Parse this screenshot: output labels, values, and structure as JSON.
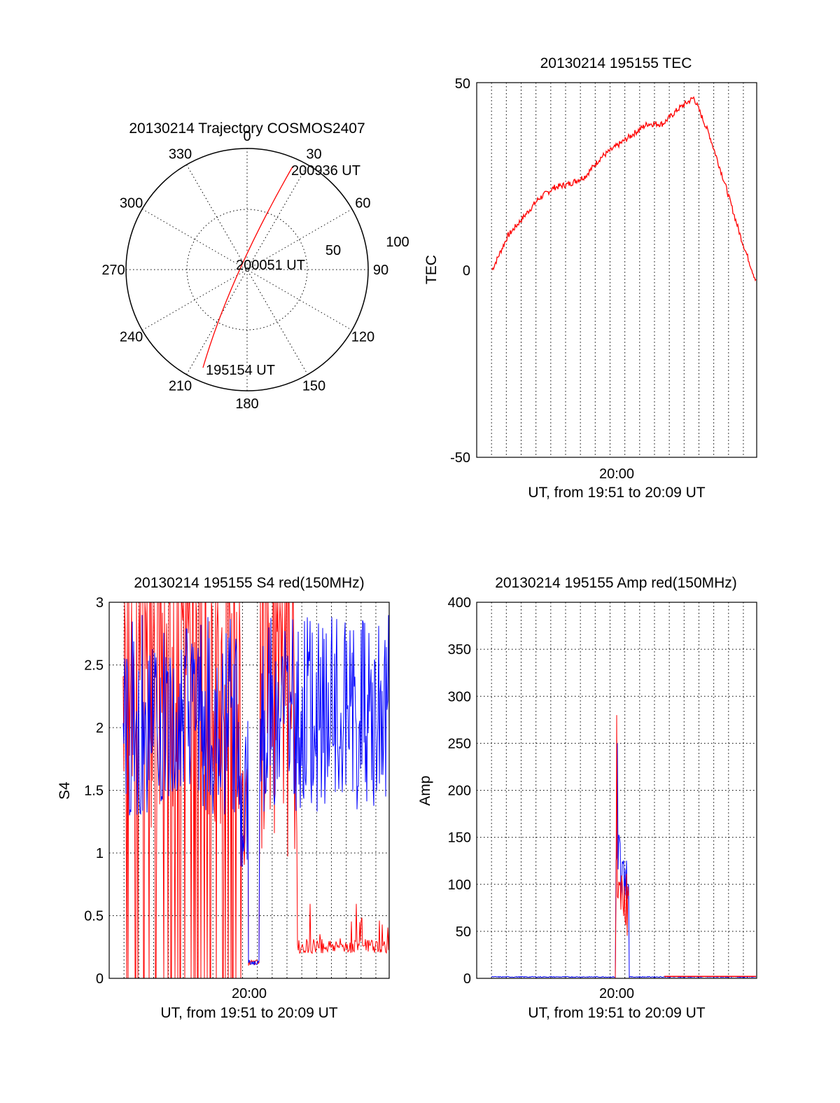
{
  "colors": {
    "red": "#ff0000",
    "blue": "#0000ff",
    "axis": "#000000"
  },
  "polar": {
    "title": "20130214 Trajectory COSMOS2407",
    "angle_labels": [
      "0",
      "30",
      "60",
      "90",
      "120",
      "150",
      "180",
      "210",
      "240",
      "270",
      "300",
      "330"
    ],
    "radius_labels": [
      "50",
      "100"
    ],
    "time_labels": {
      "end": "200936 UT",
      "mid": "200051 UT",
      "start": "195154 UT"
    }
  },
  "chart_data": [
    {
      "type": "line",
      "title": "20130214 195155 TEC",
      "ylabel": "TEC",
      "xlabel": "UT, from 19:51 to 20:09 UT",
      "ylim": [
        -50,
        50
      ],
      "yticks": [
        "50",
        "0",
        "-50"
      ],
      "xticks": [
        "20:00"
      ],
      "grid": "vertical dotted",
      "series": [
        {
          "color": "red",
          "x_min": [
            1,
            2,
            3,
            4,
            5,
            6,
            7,
            8,
            9,
            10,
            11,
            12,
            13,
            14,
            15,
            16,
            17
          ],
          "values": [
            0,
            9,
            14,
            19,
            22,
            23,
            25,
            30,
            33,
            36,
            39,
            39,
            43,
            46,
            36,
            23,
            9
          ]
        }
      ]
    },
    {
      "type": "line",
      "title": "20130214 195155 S4 red(150MHz)",
      "ylabel": "S4",
      "xlabel": "UT, from 19:51 to 20:09 UT",
      "ylim": [
        0,
        3
      ],
      "yticks": [
        "3",
        "2.5",
        "2",
        "1.5",
        "1",
        "0.5",
        "0"
      ],
      "xticks": [
        "20:00"
      ],
      "grid": "dotted",
      "series": [
        {
          "color": "red",
          "approx": "mostly saturated/noisy until 20:02, then 0.2-0.5"
        },
        {
          "color": "blue",
          "approx": "1.2-3, dip near 0.1 at 20:00"
        }
      ]
    },
    {
      "type": "line",
      "title": "20130214 195155 Amp red(150MHz)",
      "ylabel": "Amp",
      "xlabel": "UT, from 19:51 to 20:09 UT",
      "ylim": [
        0,
        400
      ],
      "yticks": [
        "400",
        "350",
        "300",
        "250",
        "200",
        "150",
        "100",
        "50",
        "0"
      ],
      "xticks": [
        "20:00"
      ],
      "grid": "dotted",
      "series": [
        {
          "color": "red",
          "peak": 280,
          "approx": "burst 50-280 near 20:00"
        },
        {
          "color": "blue",
          "peak": 250,
          "approx": "burst 100-250 near 20:00"
        }
      ]
    }
  ]
}
